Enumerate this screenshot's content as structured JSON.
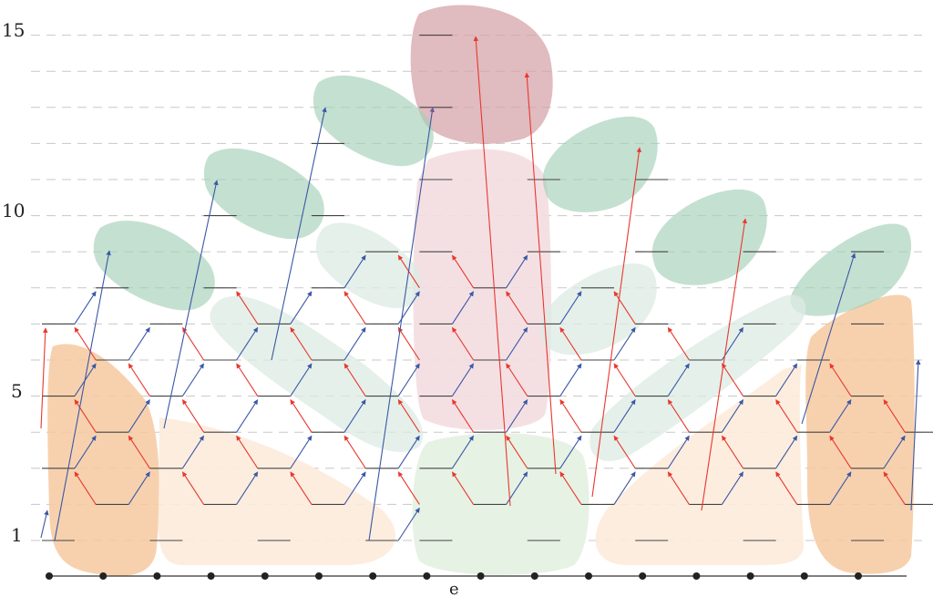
{
  "y_axis_labels": {
    "top": "15",
    "upper": "10",
    "middle": "5",
    "bottom": "1"
  },
  "bottom_label": "e",
  "colors": {
    "red_arrow": "#e8372e",
    "blue_arrow": "#3b57a6",
    "purple_arrow": "#6e5a9c",
    "orange_arrow": "#c9602c",
    "level_line": "#444444",
    "gridline": "#bbbbbb",
    "orange_region": "#f6c9a0",
    "light_orange_region": "#fdebdb",
    "green_region": "#a5cfb8",
    "light_green_region": "#dcebe3",
    "pale_green_region": "#e6f2e3",
    "maroon_region": "#d39ea4",
    "pink_region": "#f3dde0"
  }
}
